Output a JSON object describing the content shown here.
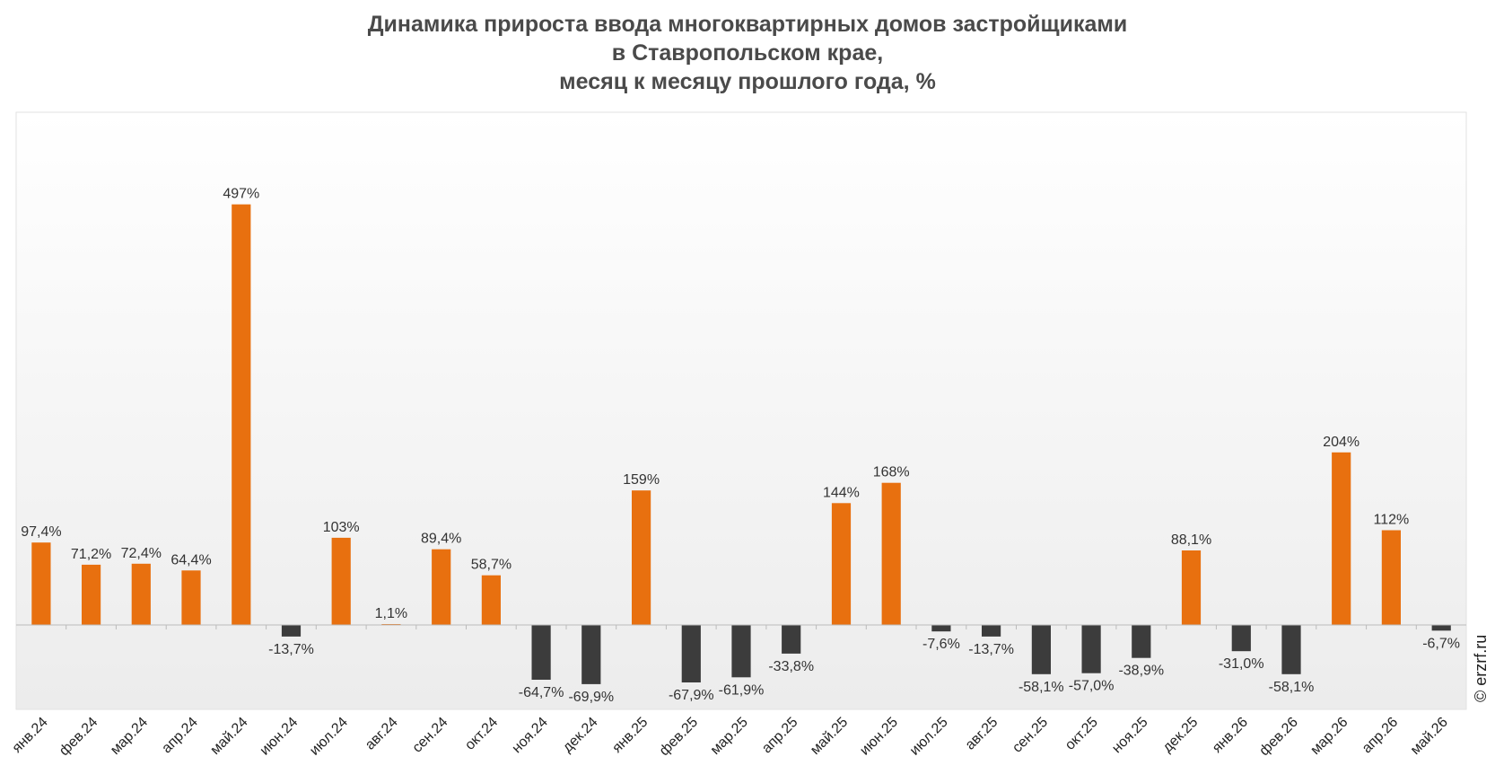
{
  "title_lines": [
    "Динамика прироста ввода многоквартирных домов застройщиками",
    "в Ставропольском крае,",
    "месяц к месяцу прошлого года, %"
  ],
  "source": "© erzrf.ru",
  "colors": {
    "positive": "#E8700F",
    "negative": "#3C3C3C",
    "plot_bg_top": "#FFFFFF",
    "plot_bg_bottom": "#EDEDED",
    "axis": "#BBBBBB"
  },
  "chart_data": {
    "type": "bar",
    "title": "Динамика прироста ввода многоквартирных домов застройщиками в Ставропольском крае, месяц к месяцу прошлого года, %",
    "categories": [
      "янв.24",
      "фев.24",
      "мар.24",
      "апр.24",
      "май.24",
      "июн.24",
      "июл.24",
      "авг.24",
      "сен.24",
      "окт.24",
      "ноя.24",
      "дек.24",
      "янв.25",
      "фев.25",
      "мар.25",
      "апр.25",
      "май.25",
      "июн.25",
      "июл.25",
      "авг.25",
      "сен.25",
      "окт.25",
      "ноя.25",
      "дек.25",
      "янв.26",
      "фев.26",
      "мар.26",
      "апр.26",
      "май.26"
    ],
    "values": [
      97.4,
      71.2,
      72.4,
      64.4,
      497,
      -13.7,
      103,
      1.1,
      89.4,
      58.7,
      -64.7,
      -69.9,
      159,
      -67.9,
      -61.9,
      -33.8,
      144,
      168,
      -7.6,
      -13.7,
      -58.1,
      -57.0,
      -38.9,
      88.1,
      -31.0,
      -58.1,
      204,
      112,
      -6.7
    ],
    "value_labels": [
      "97,4%",
      "71,2%",
      "72,4%",
      "64,4%",
      "497%",
      "-13,7%",
      "103%",
      "1,1%",
      "89,4%",
      "58,7%",
      "-64,7%",
      "-69,9%",
      "159%",
      "-67,9%",
      "-61,9%",
      "-33,8%",
      "144%",
      "168%",
      "-7,6%",
      "-13,7%",
      "-58,1%",
      "-57,0%",
      "-38,9%",
      "88,1%",
      "-31,0%",
      "-58,1%",
      "204%",
      "112%",
      "-6,7%"
    ],
    "ylim": [
      -100,
      600
    ],
    "grid": false,
    "legend": "none"
  }
}
